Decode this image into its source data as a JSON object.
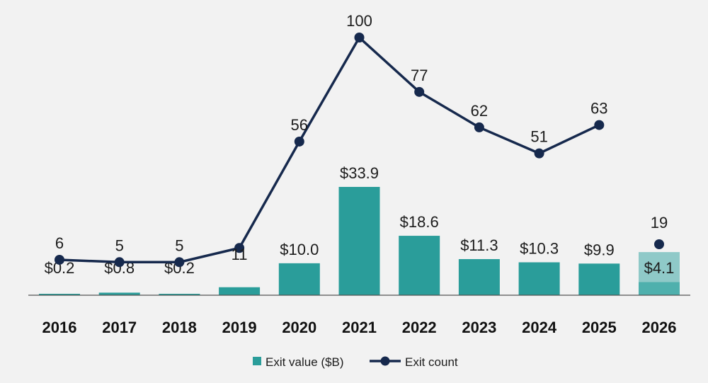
{
  "chart_data": {
    "type": "bar+line",
    "categories": [
      "2016",
      "2017",
      "2018",
      "2019",
      "2020",
      "2021",
      "2022",
      "2023",
      "2024",
      "2025",
      "2026"
    ],
    "series": [
      {
        "name": "Exit value ($B)",
        "type": "bar",
        "values": [
          0.2,
          0.8,
          0.2,
          2.5,
          10.0,
          33.9,
          18.6,
          11.3,
          10.3,
          9.9,
          4.1
        ],
        "labels": [
          "$0.2",
          "$0.8",
          "$0.2",
          "",
          "$10.0",
          "$33.9",
          "$18.6",
          "$11.3",
          "$10.3",
          "$9.9",
          "$4.1"
        ],
        "projected_total": 13.5,
        "color": "#2a9d9a",
        "partial_color": "#8fc9c8"
      },
      {
        "name": "Exit count",
        "type": "line",
        "values": [
          6,
          5,
          5,
          11,
          56,
          100,
          77,
          62,
          51,
          63,
          19
        ],
        "labels": [
          "6",
          "5",
          "5",
          "11",
          "56",
          "100",
          "77",
          "62",
          "51",
          "63",
          "19"
        ],
        "color": "#16294d"
      }
    ],
    "partial_year": "2026",
    "legend_placement": "bottom-center",
    "grid": false
  }
}
